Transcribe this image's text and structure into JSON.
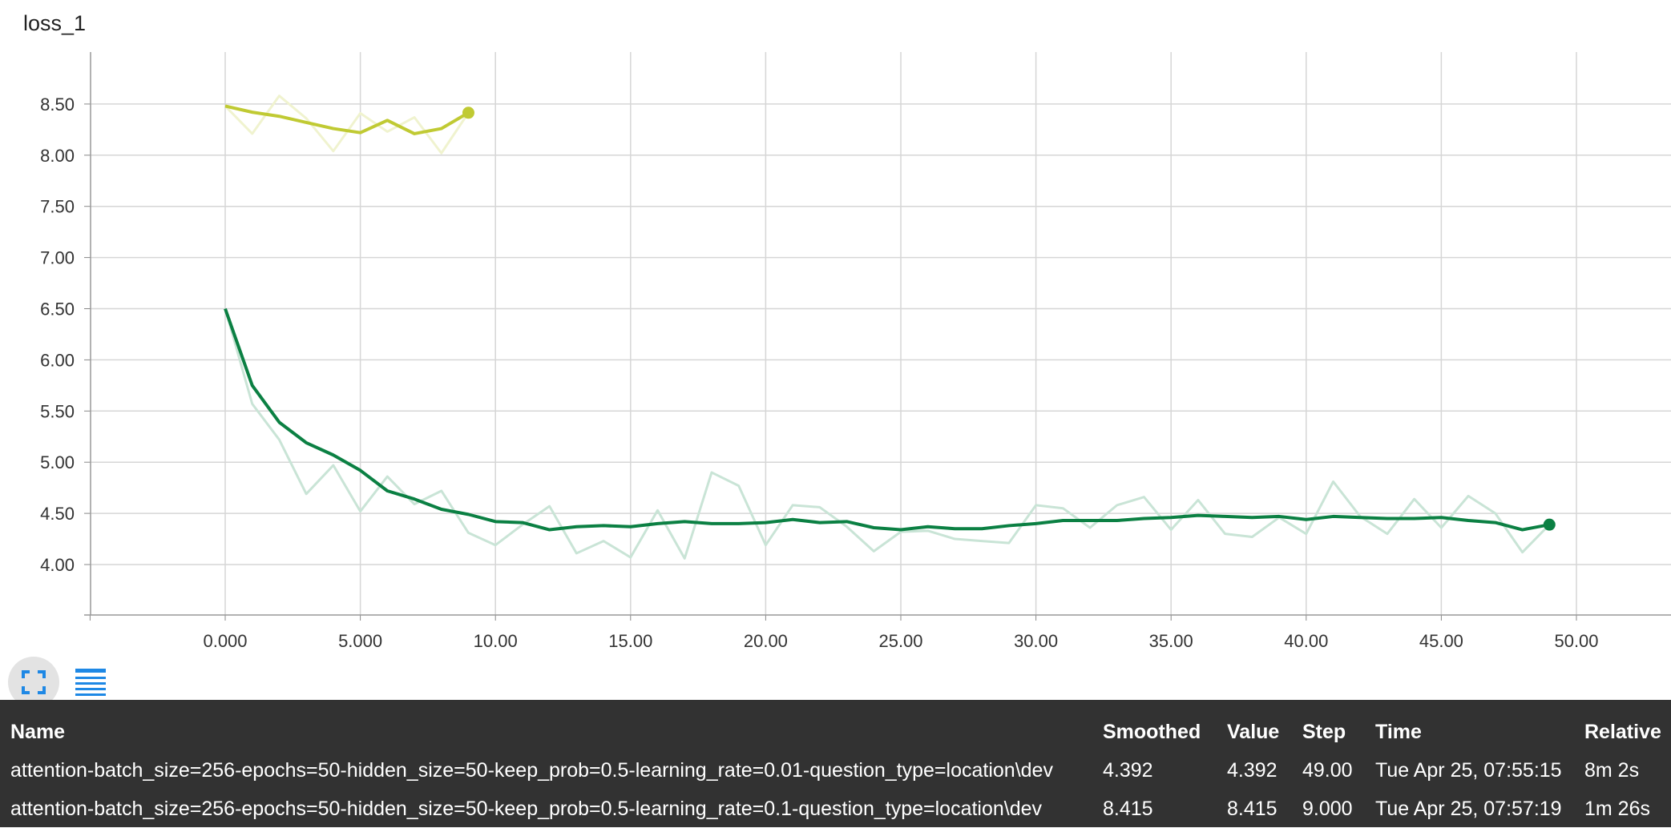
{
  "title": "loss_1",
  "chart_data": {
    "type": "line",
    "title": "loss_1",
    "xlabel": "",
    "ylabel": "",
    "xlim": [
      -5,
      55
    ],
    "ylim": [
      3.5,
      9.0
    ],
    "x_ticks": [
      0,
      5,
      10,
      15,
      20,
      25,
      30,
      35,
      40,
      45,
      50
    ],
    "x_tick_labels": [
      "0.000",
      "5.000",
      "10.00",
      "15.00",
      "20.00",
      "25.00",
      "30.00",
      "35.00",
      "40.00",
      "45.00",
      "50.00"
    ],
    "y_ticks": [
      4.0,
      4.5,
      5.0,
      5.5,
      6.0,
      6.5,
      7.0,
      7.5,
      8.0,
      8.5
    ],
    "y_tick_labels": [
      "4.00",
      "4.50",
      "5.00",
      "5.50",
      "6.00",
      "6.50",
      "7.00",
      "7.50",
      "8.00",
      "8.50"
    ],
    "grid": true,
    "series": [
      {
        "color": "#0b8043",
        "raw_color": "#c9e4d6",
        "x": [
          0,
          1,
          2,
          3,
          4,
          5,
          6,
          7,
          8,
          9,
          10,
          11,
          12,
          13,
          14,
          15,
          16,
          17,
          18,
          19,
          20,
          21,
          22,
          23,
          24,
          25,
          26,
          27,
          28,
          29,
          30,
          31,
          32,
          33,
          34,
          35,
          36,
          37,
          38,
          39,
          40,
          41,
          42,
          43,
          44,
          45,
          46,
          47,
          48,
          49
        ],
        "smoothed": [
          6.5,
          5.75,
          5.39,
          5.19,
          5.07,
          4.92,
          4.72,
          4.64,
          4.54,
          4.49,
          4.42,
          4.41,
          4.34,
          4.37,
          4.38,
          4.37,
          4.4,
          4.42,
          4.4,
          4.4,
          4.41,
          4.44,
          4.41,
          4.42,
          4.36,
          4.34,
          4.37,
          4.35,
          4.35,
          4.38,
          4.4,
          4.43,
          4.43,
          4.43,
          4.45,
          4.46,
          4.48,
          4.47,
          4.46,
          4.47,
          4.44,
          4.47,
          4.46,
          4.45,
          4.45,
          4.46,
          4.43,
          4.41,
          4.34,
          4.39
        ],
        "values": [
          6.5,
          5.57,
          5.22,
          4.69,
          4.97,
          4.52,
          4.86,
          4.59,
          4.72,
          4.31,
          4.19,
          4.39,
          4.57,
          4.11,
          4.23,
          4.07,
          4.53,
          4.06,
          4.9,
          4.77,
          4.19,
          4.58,
          4.56,
          4.37,
          4.13,
          4.32,
          4.33,
          4.25,
          4.23,
          4.21,
          4.58,
          4.55,
          4.36,
          4.58,
          4.66,
          4.34,
          4.63,
          4.3,
          4.27,
          4.46,
          4.3,
          4.81,
          4.47,
          4.3,
          4.64,
          4.36,
          4.67,
          4.5,
          4.12,
          4.39
        ]
      },
      {
        "color": "#c0ca33",
        "raw_color": "#f0f3cf",
        "x": [
          0,
          1,
          2,
          3,
          4,
          5,
          6,
          7,
          8,
          9
        ],
        "smoothed": [
          8.48,
          8.42,
          8.38,
          8.32,
          8.26,
          8.22,
          8.34,
          8.21,
          8.26,
          8.415
        ],
        "values": [
          8.48,
          8.21,
          8.58,
          8.36,
          8.04,
          8.41,
          8.23,
          8.37,
          8.02,
          8.415
        ]
      }
    ]
  },
  "toolbar": {
    "fullscreen_icon": "fullscreen-icon",
    "data_icon": "list-icon",
    "accent": "#1e88e5"
  },
  "table": {
    "headers": {
      "name": "Name",
      "smoothed": "Smoothed",
      "value": "Value",
      "step": "Step",
      "time": "Time",
      "relative": "Relative"
    },
    "rows": [
      {
        "name": "attention-batch_size=256-epochs=50-hidden_size=50-keep_prob=0.5-learning_rate=0.01-question_type=location\\dev",
        "smoothed": "4.392",
        "value": "4.392",
        "step": "49.00",
        "time": "Tue Apr 25, 07:55:15",
        "relative": "8m 2s"
      },
      {
        "name": "attention-batch_size=256-epochs=50-hidden_size=50-keep_prob=0.5-learning_rate=0.1-question_type=location\\dev",
        "smoothed": "8.415",
        "value": "8.415",
        "step": "9.000",
        "time": "Tue Apr 25, 07:57:19",
        "relative": "1m 26s"
      }
    ]
  }
}
